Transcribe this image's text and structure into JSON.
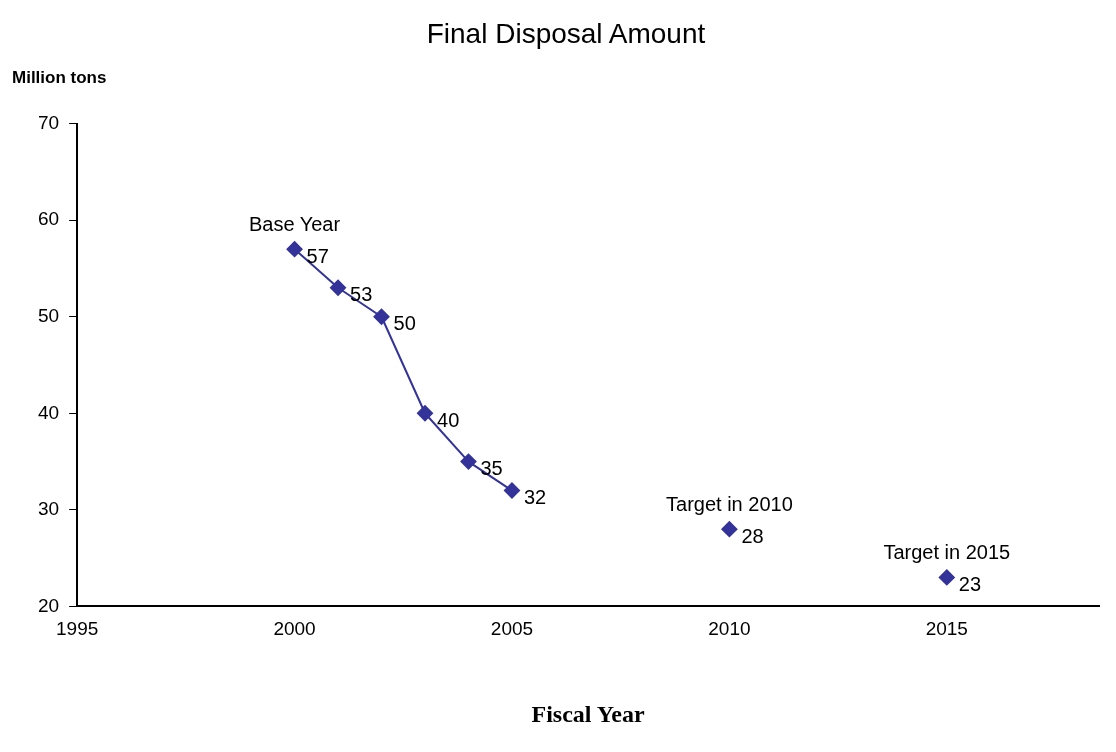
{
  "chart_data": {
    "type": "line",
    "title": "Final Disposal Amount",
    "xlabel": "Fiscal Year",
    "ylabel": "Million tons",
    "xlim": [
      1995,
      2018.5
    ],
    "xticks": [
      1995,
      2000,
      2005,
      2010,
      2015
    ],
    "ylim": [
      20,
      70
    ],
    "yticks": [
      20,
      30,
      40,
      50,
      60,
      70
    ],
    "grid": false,
    "legend": false,
    "marker": "diamond",
    "line_style": "solid",
    "data_labels": true,
    "series": [
      {
        "type": "line",
        "color": "#333399",
        "x": [
          2000,
          2001,
          2002,
          2003,
          2004,
          2005
        ],
        "values": [
          57,
          53,
          50,
          40,
          35,
          32
        ]
      },
      {
        "type": "scatter",
        "color": "#333399",
        "x": [
          2010,
          2015
        ],
        "values": [
          28,
          23
        ]
      }
    ],
    "annotations": [
      {
        "text": "Base Year",
        "x": 2000,
        "y": 57
      },
      {
        "text": "Target in 2010",
        "x": 2010,
        "y": 28
      },
      {
        "text": "Target in 2015",
        "x": 2015,
        "y": 23
      }
    ]
  }
}
